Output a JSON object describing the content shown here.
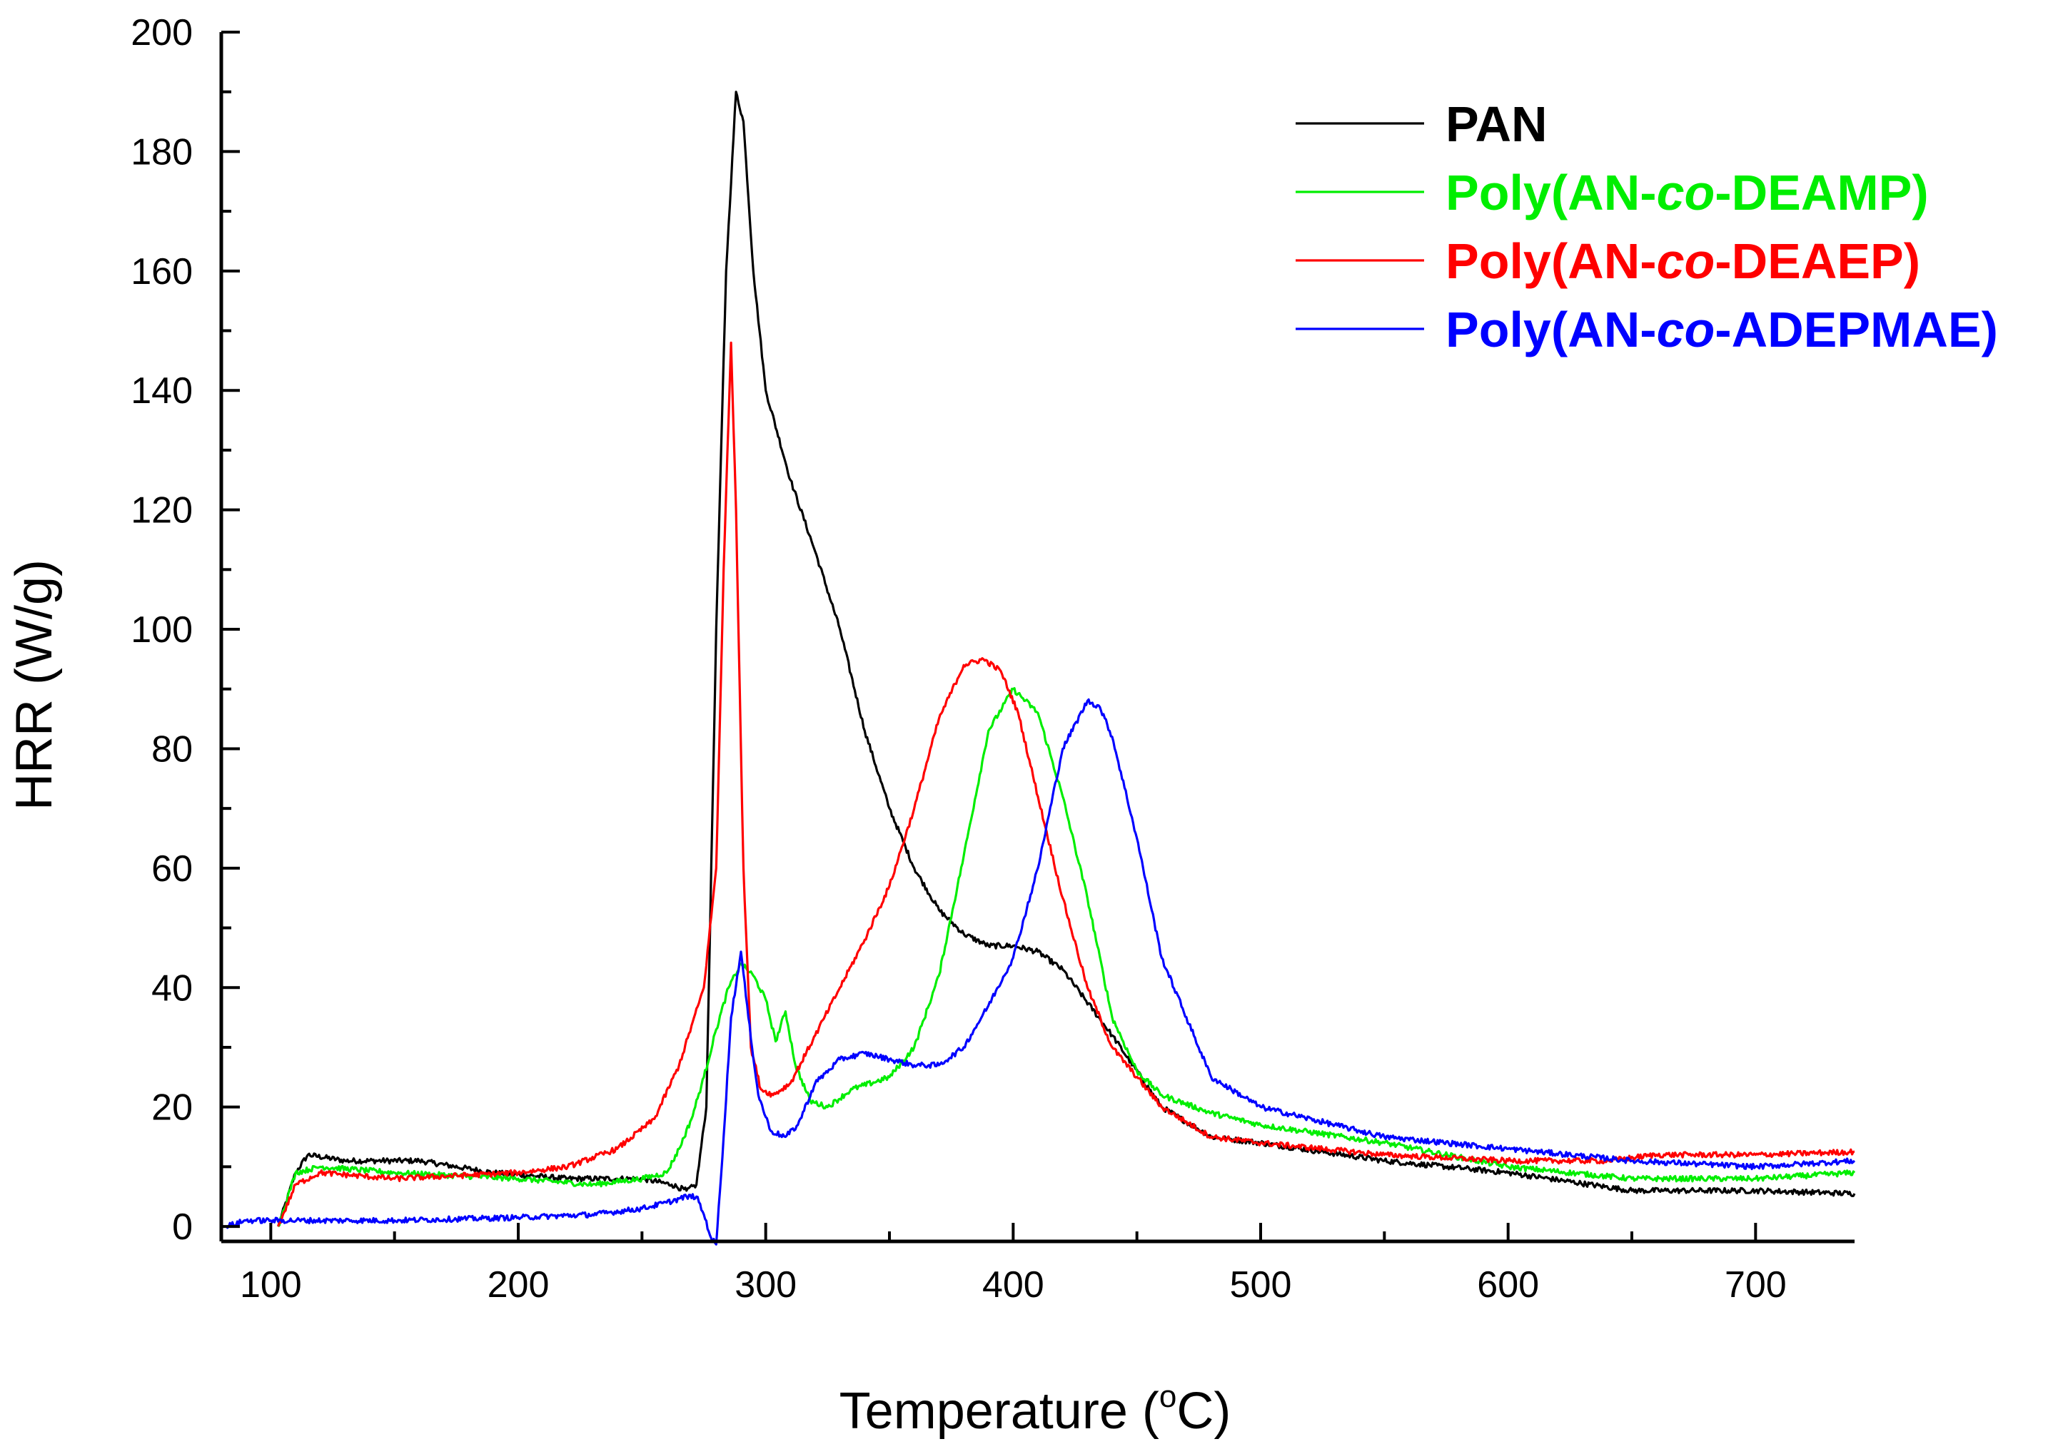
{
  "chart_data": {
    "type": "line",
    "title": "",
    "xlabel": "Temperature (°C)",
    "xlabel_prefix": "Temperature (",
    "xlabel_sup": "o",
    "xlabel_suffix": "C)",
    "ylabel": "HRR (W/g)",
    "xlim": [
      80,
      740
    ],
    "ylim": [
      -2.5,
      200
    ],
    "x_ticks": [
      100,
      200,
      300,
      400,
      500,
      600,
      700
    ],
    "y_ticks": [
      0,
      20,
      40,
      60,
      80,
      100,
      120,
      140,
      160,
      180,
      200
    ],
    "x_tick_labels": [
      "100",
      "200",
      "300",
      "400",
      "500",
      "600",
      "700"
    ],
    "y_tick_labels": [
      "0",
      "20",
      "40",
      "60",
      "80",
      "100",
      "120",
      "140",
      "160",
      "180",
      "200"
    ],
    "grid": false,
    "legend_position": "top-right",
    "series": [
      {
        "name": "PAN",
        "label_prefix": "PAN",
        "label_italic": "",
        "label_suffix": "",
        "color": "#000000",
        "x": [
          103,
          110,
          115,
          130,
          160,
          190,
          220,
          250,
          262,
          268,
          272,
          276,
          280,
          284,
          288,
          291,
          295,
          300,
          310,
          320,
          330,
          340,
          350,
          360,
          370,
          380,
          390,
          400,
          410,
          420,
          440,
          460,
          480,
          500,
          550,
          600,
          650,
          700,
          740
        ],
        "y": [
          0,
          9,
          12,
          11,
          11,
          9,
          8,
          8,
          7,
          6,
          7,
          20,
          100,
          160,
          190,
          185,
          160,
          140,
          125,
          113,
          100,
          83,
          70,
          60,
          53,
          49,
          47,
          47,
          46,
          43,
          32,
          20,
          15,
          14,
          11,
          9,
          6,
          6,
          5.5
        ]
      },
      {
        "name": "Poly(AN-co-DEAMP)",
        "label_prefix": "Poly(AN-",
        "label_italic": "co",
        "label_suffix": "-DEAMP)",
        "color": "#00ee00",
        "x": [
          103,
          110,
          120,
          150,
          200,
          230,
          250,
          260,
          265,
          270,
          275,
          280,
          285,
          290,
          295,
          300,
          304,
          308,
          312,
          318,
          325,
          335,
          350,
          360,
          370,
          380,
          390,
          400,
          410,
          420,
          430,
          440,
          450,
          460,
          480,
          500,
          550,
          600,
          650,
          700,
          740
        ],
        "y": [
          0,
          9,
          10,
          9,
          8,
          7,
          8,
          9,
          13,
          18,
          25,
          33,
          40,
          44,
          42,
          38,
          31,
          36,
          27,
          21,
          20,
          23,
          25,
          30,
          42,
          62,
          83,
          90,
          86,
          72,
          55,
          35,
          26,
          22,
          19,
          17,
          14,
          10,
          8,
          8,
          9
        ]
      },
      {
        "name": "Poly(AN-co-DEAEP)",
        "label_prefix": "Poly(AN-",
        "label_italic": "co",
        "label_suffix": "-DEAEP)",
        "color": "#ff0000",
        "x": [
          103,
          110,
          120,
          150,
          200,
          220,
          240,
          255,
          265,
          275,
          280,
          283,
          286,
          288,
          291,
          294,
          298,
          303,
          310,
          320,
          330,
          340,
          350,
          360,
          370,
          380,
          388,
          395,
          402,
          410,
          420,
          430,
          440,
          460,
          480,
          500,
          550,
          600,
          640,
          660,
          700,
          740
        ],
        "y": [
          0,
          7,
          9,
          8,
          9,
          10,
          13,
          18,
          27,
          40,
          60,
          110,
          148,
          120,
          60,
          30,
          23,
          22,
          24,
          32,
          40,
          48,
          57,
          70,
          85,
          94,
          95,
          93,
          86,
          72,
          55,
          40,
          30,
          20,
          15,
          14,
          12,
          11,
          11,
          12,
          12,
          12.5
        ]
      },
      {
        "name": "Poly(AN-co-ADEPMAE)",
        "label_prefix": "Poly(AN-",
        "label_italic": "co",
        "label_suffix": "-ADEPMAE)",
        "color": "#0000ff",
        "x": [
          82,
          90,
          100,
          150,
          200,
          230,
          250,
          260,
          268,
          272,
          275,
          278,
          280,
          283,
          286,
          290,
          293,
          297,
          302,
          308,
          313,
          320,
          330,
          340,
          350,
          360,
          370,
          380,
          390,
          400,
          410,
          420,
          430,
          435,
          440,
          450,
          460,
          480,
          500,
          550,
          600,
          650,
          700,
          740
        ],
        "y": [
          0,
          1,
          1,
          1,
          1.5,
          2,
          3,
          4,
          5,
          5,
          2,
          -2,
          -3,
          15,
          35,
          46,
          35,
          22,
          16,
          15,
          17,
          24,
          28,
          29,
          28,
          27,
          27,
          30,
          37,
          45,
          60,
          80,
          88,
          87,
          82,
          65,
          45,
          25,
          20,
          15,
          13,
          11,
          10,
          11
        ]
      }
    ]
  }
}
